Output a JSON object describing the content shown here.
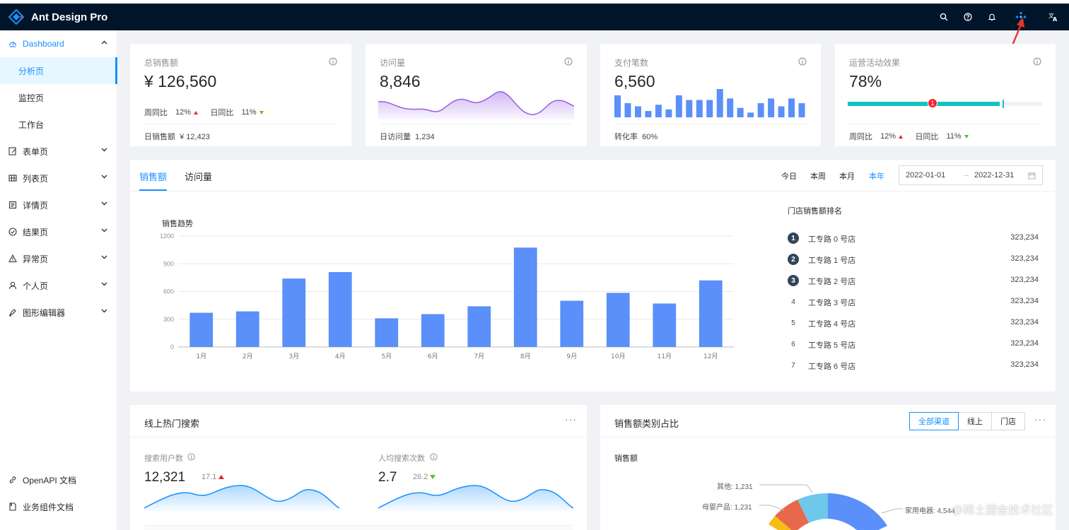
{
  "app": {
    "title": "Ant Design Pro"
  },
  "header": {
    "icons": [
      "search-icon",
      "question-circle-icon",
      "bell-icon",
      "apps-icon",
      "translation-icon"
    ]
  },
  "sidebar": {
    "items": [
      {
        "label": "Dashboard",
        "icon": "dashboard-icon",
        "expanded": true
      },
      {
        "label": "分析页",
        "selected": true
      },
      {
        "label": "监控页"
      },
      {
        "label": "工作台"
      },
      {
        "label": "表单页",
        "icon": "form-icon"
      },
      {
        "label": "列表页",
        "icon": "table-icon"
      },
      {
        "label": "详情页",
        "icon": "profile-icon"
      },
      {
        "label": "结果页",
        "icon": "check-circle-icon"
      },
      {
        "label": "异常页",
        "icon": "warning-icon"
      },
      {
        "label": "个人页",
        "icon": "user-icon"
      },
      {
        "label": "图形编辑器",
        "icon": "highlight-icon"
      }
    ],
    "footer": [
      {
        "label": "OpenAPI 文档",
        "icon": "link-icon"
      },
      {
        "label": "业务组件文档",
        "icon": "file-icon"
      }
    ]
  },
  "kpi": {
    "sales": {
      "label": "总销售额",
      "value": "¥ 126,560",
      "wow_label": "周同比",
      "wow": "12%",
      "dod_label": "日同比",
      "dod": "11%",
      "footer_label": "日销售额",
      "footer_value": "¥ 12,423"
    },
    "visits": {
      "label": "访问量",
      "value": "8,846",
      "footer_label": "日访问量",
      "footer_value": "1,234"
    },
    "payments": {
      "label": "支付笔数",
      "value": "6,560",
      "footer_label": "转化率",
      "footer_value": "60%"
    },
    "ops": {
      "label": "运营活动效果",
      "value": "78%",
      "progress": 0.78,
      "badge": "1",
      "wow_label": "周同比",
      "wow": "12%",
      "dod_label": "日同比",
      "dod": "11%"
    }
  },
  "mini": {
    "payments_bars": [
      7,
      4.5,
      3.5,
      2,
      4,
      2.5,
      7,
      5.5,
      5.5,
      5.5,
      9,
      6,
      3,
      1.5,
      4.5,
      6,
      3.5,
      6,
      4.5
    ]
  },
  "sales_panel": {
    "tabs": [
      "销售额",
      "访问量"
    ],
    "ranges": [
      "今日",
      "本周",
      "本月",
      "本年"
    ],
    "active_range": "本年",
    "date_start": "2022-01-01",
    "date_sep": "→",
    "date_end": "2022-12-31",
    "rank_title": "门店销售额排名",
    "ranking": [
      {
        "rank": "1",
        "name": "工专路 0 号店",
        "value": "323,234"
      },
      {
        "rank": "2",
        "name": "工专路 1 号店",
        "value": "323,234"
      },
      {
        "rank": "3",
        "name": "工专路 2 号店",
        "value": "323,234"
      },
      {
        "rank": "4",
        "name": "工专路 3 号店",
        "value": "323,234"
      },
      {
        "rank": "5",
        "name": "工专路 4 号店",
        "value": "323,234"
      },
      {
        "rank": "6",
        "name": "工专路 5 号店",
        "value": "323,234"
      },
      {
        "rank": "7",
        "name": "工专路 6 号店",
        "value": "323,234"
      }
    ]
  },
  "chart_data": {
    "type": "bar",
    "title": "销售趋势",
    "categories": [
      "1月",
      "2月",
      "3月",
      "4月",
      "5月",
      "6月",
      "7月",
      "8月",
      "9月",
      "10月",
      "11月",
      "12月"
    ],
    "values": [
      370,
      385,
      740,
      810,
      310,
      355,
      440,
      1075,
      500,
      585,
      470,
      720
    ],
    "yticks": [
      "0",
      "300",
      "600",
      "900",
      "1200"
    ],
    "ylim": [
      0,
      1200
    ],
    "grid": true,
    "color": "#5b8ff9"
  },
  "search_card": {
    "title": "线上热门搜索",
    "more": "···",
    "users_label": "搜索用户数",
    "users_value": "12,321",
    "users_change": "17.1",
    "per_label": "人均搜索次数",
    "per_value": "2.7",
    "per_change": "26.2"
  },
  "category_card": {
    "title": "销售额类别占比",
    "more": "···",
    "segments": [
      "全部渠道",
      "线上",
      "门店"
    ],
    "active_segment": "全部渠道",
    "subtitle": "销售额",
    "pie_labels": [
      "其他: 1,231",
      "母婴产品: 1,231",
      "家用电器: 4,544"
    ]
  },
  "watermark": "@稀土掘金技术社区"
}
